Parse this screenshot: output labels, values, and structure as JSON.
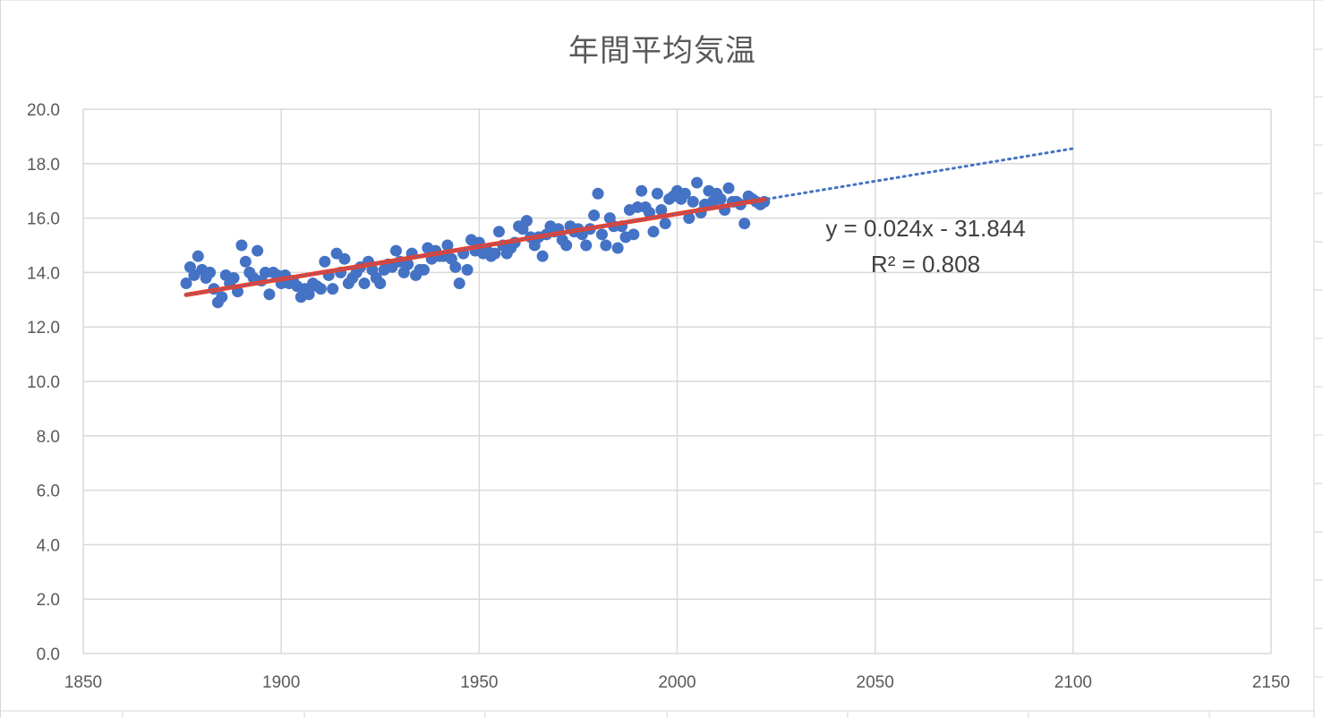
{
  "chart_data": {
    "type": "scatter",
    "title": "年間平均気温",
    "xlim": [
      1850,
      2150
    ],
    "ylim": [
      0,
      20
    ],
    "x_ticks": [
      1850,
      1900,
      1950,
      2000,
      2050,
      2100,
      2150
    ],
    "y_ticks": [
      "0.0",
      "2.0",
      "4.0",
      "6.0",
      "8.0",
      "10.0",
      "12.0",
      "14.0",
      "16.0",
      "18.0",
      "20.0"
    ],
    "grid": true,
    "legend": "none",
    "colors": {
      "points": "#4472c4",
      "fit_line": "#e8412f",
      "forecast_line": "#4472c4"
    },
    "trendline": {
      "type": "linear",
      "slope": 0.024,
      "intercept": -31.844,
      "equation_label": "y = 0.024x - 31.844",
      "r2_label": "R² = 0.808",
      "fit_x_range": [
        1876,
        2022
      ],
      "forecast_to": 2100
    },
    "points": [
      [
        1876,
        13.6
      ],
      [
        1877,
        14.2
      ],
      [
        1878,
        13.9
      ],
      [
        1879,
        14.6
      ],
      [
        1880,
        14.1
      ],
      [
        1881,
        13.8
      ],
      [
        1882,
        14.0
      ],
      [
        1883,
        13.4
      ],
      [
        1884,
        12.9
      ],
      [
        1885,
        13.1
      ],
      [
        1886,
        13.9
      ],
      [
        1887,
        13.6
      ],
      [
        1888,
        13.8
      ],
      [
        1889,
        13.3
      ],
      [
        1890,
        15.0
      ],
      [
        1891,
        14.4
      ],
      [
        1892,
        14.0
      ],
      [
        1893,
        13.8
      ],
      [
        1894,
        14.8
      ],
      [
        1895,
        13.7
      ],
      [
        1896,
        14.0
      ],
      [
        1897,
        13.2
      ],
      [
        1898,
        14.0
      ],
      [
        1899,
        13.9
      ],
      [
        1900,
        13.6
      ],
      [
        1901,
        13.9
      ],
      [
        1902,
        13.6
      ],
      [
        1903,
        13.7
      ],
      [
        1904,
        13.5
      ],
      [
        1905,
        13.1
      ],
      [
        1906,
        13.4
      ],
      [
        1907,
        13.2
      ],
      [
        1908,
        13.6
      ],
      [
        1909,
        13.5
      ],
      [
        1910,
        13.4
      ],
      [
        1911,
        14.4
      ],
      [
        1912,
        13.9
      ],
      [
        1913,
        13.4
      ],
      [
        1914,
        14.7
      ],
      [
        1915,
        14.0
      ],
      [
        1916,
        14.5
      ],
      [
        1917,
        13.6
      ],
      [
        1918,
        13.8
      ],
      [
        1919,
        14.0
      ],
      [
        1920,
        14.2
      ],
      [
        1921,
        13.6
      ],
      [
        1922,
        14.4
      ],
      [
        1923,
        14.1
      ],
      [
        1924,
        13.8
      ],
      [
        1925,
        13.6
      ],
      [
        1926,
        14.1
      ],
      [
        1927,
        14.3
      ],
      [
        1928,
        14.2
      ],
      [
        1929,
        14.8
      ],
      [
        1930,
        14.4
      ],
      [
        1931,
        14.0
      ],
      [
        1932,
        14.3
      ],
      [
        1933,
        14.7
      ],
      [
        1934,
        13.9
      ],
      [
        1935,
        14.1
      ],
      [
        1936,
        14.1
      ],
      [
        1937,
        14.9
      ],
      [
        1938,
        14.5
      ],
      [
        1939,
        14.8
      ],
      [
        1940,
        14.6
      ],
      [
        1941,
        14.6
      ],
      [
        1942,
        15.0
      ],
      [
        1943,
        14.5
      ],
      [
        1944,
        14.2
      ],
      [
        1945,
        13.6
      ],
      [
        1946,
        14.7
      ],
      [
        1947,
        14.1
      ],
      [
        1948,
        15.2
      ],
      [
        1949,
        14.8
      ],
      [
        1950,
        15.1
      ],
      [
        1951,
        14.7
      ],
      [
        1952,
        14.8
      ],
      [
        1953,
        14.6
      ],
      [
        1954,
        14.7
      ],
      [
        1955,
        15.5
      ],
      [
        1956,
        15.0
      ],
      [
        1957,
        14.7
      ],
      [
        1958,
        14.9
      ],
      [
        1959,
        15.1
      ],
      [
        1960,
        15.7
      ],
      [
        1961,
        15.6
      ],
      [
        1962,
        15.9
      ],
      [
        1963,
        15.3
      ],
      [
        1964,
        15.0
      ],
      [
        1965,
        15.3
      ],
      [
        1966,
        14.6
      ],
      [
        1967,
        15.4
      ],
      [
        1968,
        15.7
      ],
      [
        1969,
        15.5
      ],
      [
        1970,
        15.6
      ],
      [
        1971,
        15.2
      ],
      [
        1972,
        15.0
      ],
      [
        1973,
        15.7
      ],
      [
        1974,
        15.5
      ],
      [
        1975,
        15.6
      ],
      [
        1976,
        15.4
      ],
      [
        1977,
        15.0
      ],
      [
        1978,
        15.6
      ],
      [
        1979,
        16.1
      ],
      [
        1980,
        16.9
      ],
      [
        1981,
        15.4
      ],
      [
        1982,
        15.0
      ],
      [
        1983,
        16.0
      ],
      [
        1984,
        15.7
      ],
      [
        1985,
        14.9
      ],
      [
        1986,
        15.7
      ],
      [
        1987,
        15.3
      ],
      [
        1988,
        16.3
      ],
      [
        1989,
        15.4
      ],
      [
        1990,
        16.4
      ],
      [
        1991,
        17.0
      ],
      [
        1992,
        16.4
      ],
      [
        1993,
        16.2
      ],
      [
        1994,
        15.5
      ],
      [
        1995,
        16.9
      ],
      [
        1996,
        16.3
      ],
      [
        1997,
        15.8
      ],
      [
        1998,
        16.7
      ],
      [
        1999,
        16.8
      ],
      [
        2000,
        17.0
      ],
      [
        2001,
        16.7
      ],
      [
        2002,
        16.9
      ],
      [
        2003,
        16.0
      ],
      [
        2004,
        16.6
      ],
      [
        2005,
        17.3
      ],
      [
        2006,
        16.2
      ],
      [
        2007,
        16.5
      ],
      [
        2008,
        17.0
      ],
      [
        2009,
        16.6
      ],
      [
        2010,
        16.9
      ],
      [
        2011,
        16.7
      ],
      [
        2012,
        16.3
      ],
      [
        2013,
        17.1
      ],
      [
        2014,
        16.6
      ],
      [
        2015,
        16.6
      ],
      [
        2016,
        16.5
      ],
      [
        2017,
        15.8
      ],
      [
        2018,
        16.8
      ],
      [
        2019,
        16.7
      ],
      [
        2020,
        16.6
      ],
      [
        2021,
        16.5
      ],
      [
        2022,
        16.6
      ]
    ]
  }
}
